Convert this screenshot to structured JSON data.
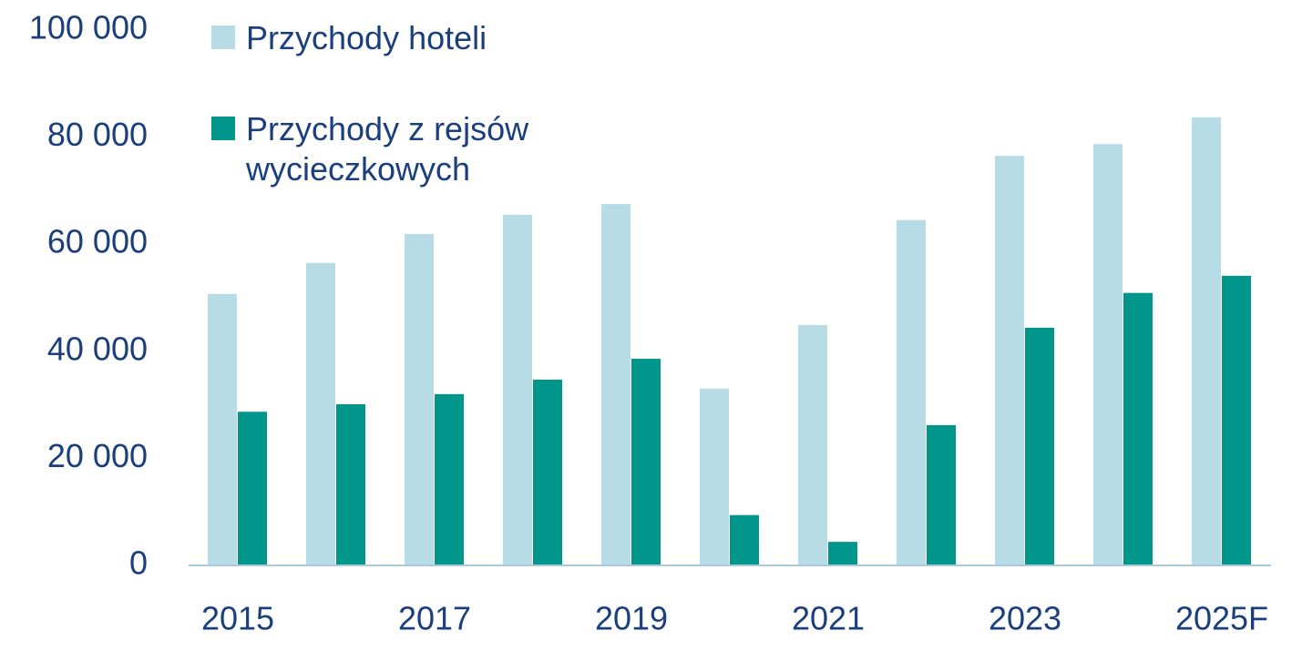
{
  "chart_data": {
    "type": "bar",
    "categories": [
      "2015",
      null,
      "2017",
      null,
      "2019",
      null,
      "2021",
      null,
      "2023",
      null,
      "2025F"
    ],
    "series": [
      {
        "name": "Przychody hoteli",
        "color": "#b7dce6",
        "values": [
          50700,
          56500,
          61900,
          65500,
          67500,
          33000,
          44900,
          64500,
          76500,
          78700,
          83700
        ]
      },
      {
        "name": "Przychody z rejsów wycieczkowych",
        "color": "#00968c",
        "values": [
          28700,
          30100,
          32000,
          34700,
          38600,
          9400,
          4400,
          26200,
          44400,
          50900,
          54100
        ]
      }
    ],
    "ylim": [
      0,
      100000
    ],
    "yticks": [
      0,
      {
        "value": 20000,
        "label": "20 000"
      },
      {
        "value": 40000,
        "label": "40 000"
      },
      {
        "value": 60000,
        "label": "60 000"
      },
      {
        "value": 80000,
        "label": "80 000"
      },
      {
        "value": 100000,
        "label": "100 000"
      }
    ],
    "grid": false,
    "legend": "top-left"
  }
}
